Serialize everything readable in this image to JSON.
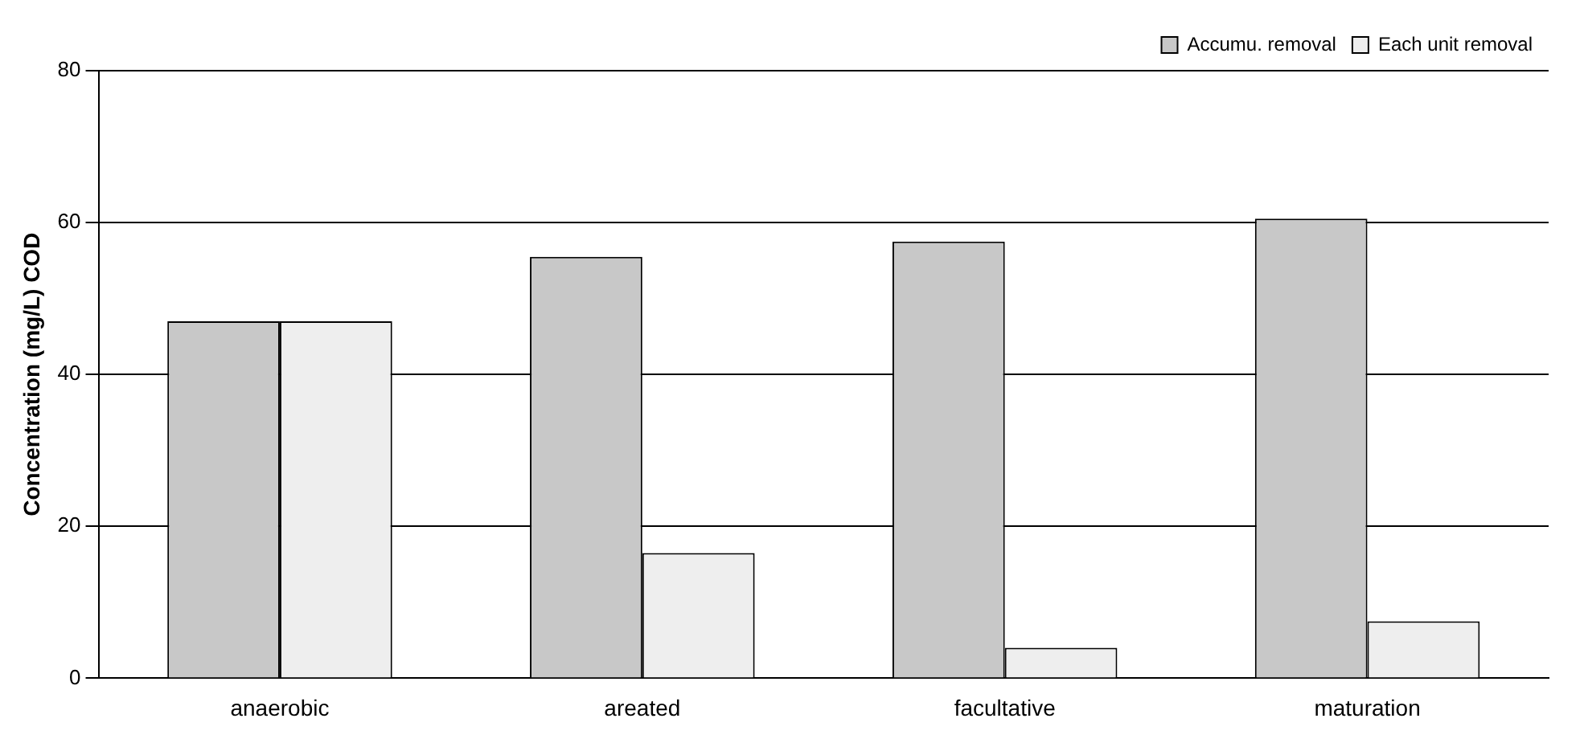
{
  "chart_data": {
    "type": "bar",
    "ylabel": "Concentration (mg/L) COD",
    "categories": [
      "anaerobic",
      "areated",
      "facultative",
      "maturation"
    ],
    "series": [
      {
        "name": "Accumu. removal",
        "color": "#c8c8c8",
        "values": [
          47,
          55.5,
          57.5,
          60.5
        ]
      },
      {
        "name": "Each unit removal",
        "color": "#eeeeee",
        "values": [
          47,
          16.5,
          4,
          7.5
        ]
      }
    ],
    "ylim": [
      0,
      80
    ],
    "yticks": [
      0,
      20,
      40,
      60,
      80
    ],
    "grid": "y",
    "legend": "top right"
  }
}
